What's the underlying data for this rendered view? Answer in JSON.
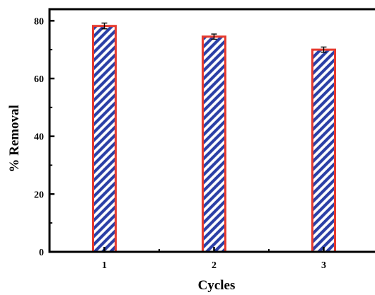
{
  "chart_data": {
    "type": "bar",
    "xlabel": "Cycles",
    "ylabel": "% Removal",
    "categories": [
      "1",
      "2",
      "3"
    ],
    "values": [
      78.2,
      74.5,
      70.0
    ],
    "errors": [
      1.0,
      0.9,
      0.9
    ],
    "ylim": [
      0,
      84
    ],
    "yticks": [
      "0",
      "20",
      "40",
      "60",
      "80"
    ],
    "ytick_values": [
      0,
      20,
      40,
      60,
      80
    ],
    "y_minor_tick_values": [
      10,
      30,
      50,
      70
    ],
    "grid": false,
    "bar_fill": "hatched",
    "colors": {
      "bar_edge": "#e63a2e",
      "hatch": "#2b3fa6",
      "axis": "#000000"
    }
  }
}
